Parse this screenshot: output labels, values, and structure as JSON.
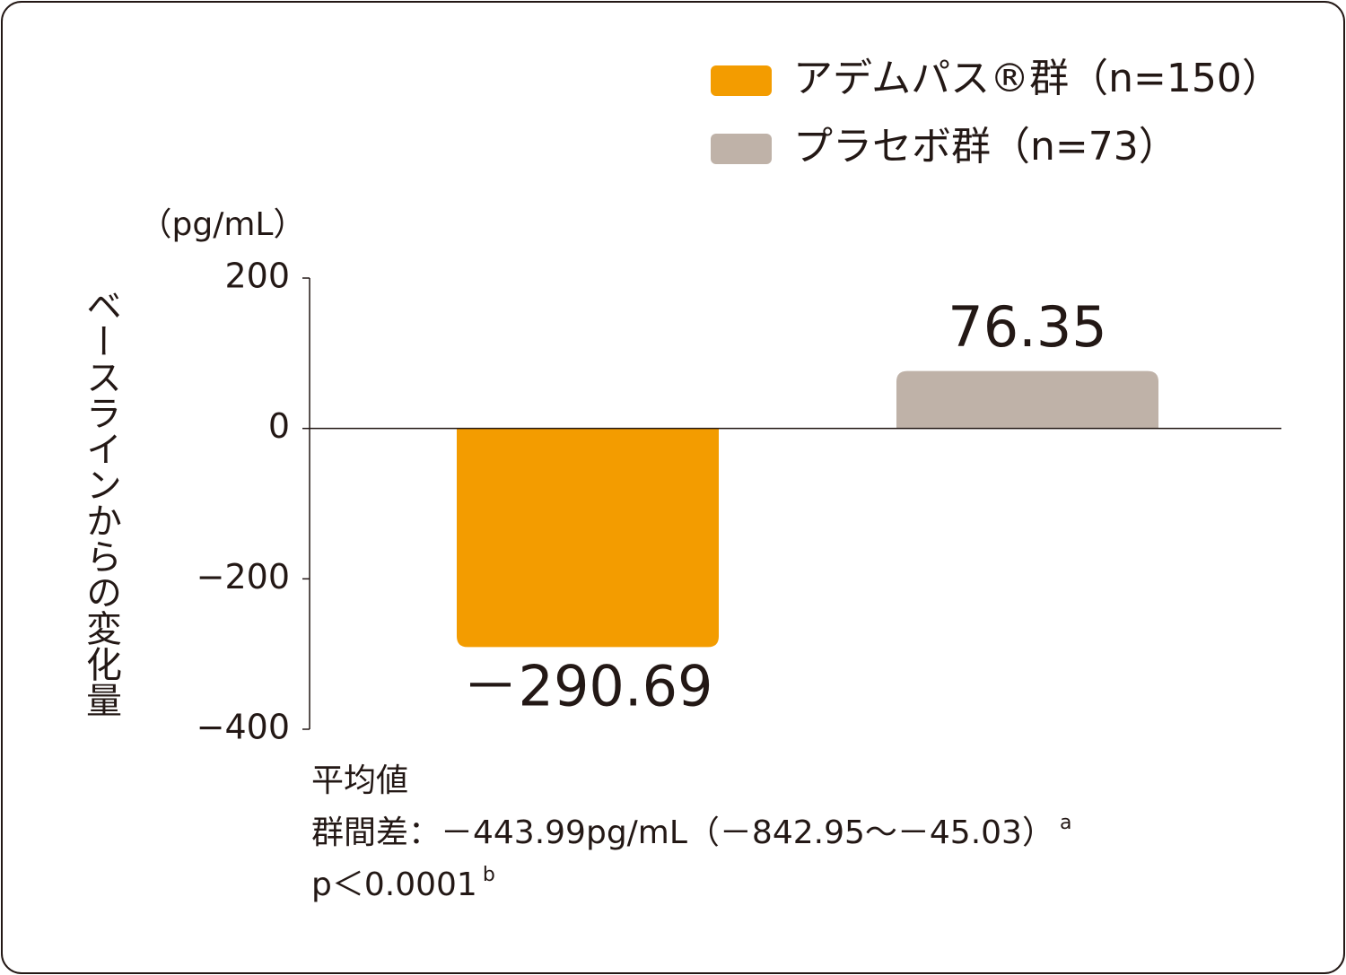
{
  "chart_data": {
    "type": "bar",
    "categories": [
      null,
      null
    ],
    "series": [
      {
        "name": "アデムパス®群（n=150）",
        "color": "#f39c00",
        "values": [
          -290.69,
          null
        ],
        "value_labels": [
          "－290.69",
          null
        ]
      },
      {
        "name": "プラセボ群（n=73）",
        "color": "#bfb2a8",
        "values": [
          null,
          76.35
        ]
      }
    ],
    "y_label": "ベースラインからの変化量",
    "y_unit": "（pg/mL）",
    "ylim": [
      -400,
      200
    ],
    "yticks": [
      200,
      0,
      {
        "value": -200,
        "label": "−200"
      },
      {
        "value": -400,
        "label": "−400"
      }
    ],
    "grid": false,
    "legend": "top-right",
    "notes": [
      {
        "text": "平均値"
      },
      {
        "text": "群間差：－443.99pg/mL（－842.95～－45.03）",
        "sup": "a"
      },
      {
        "text": "p＜0.0001",
        "sup": "b"
      }
    ]
  }
}
